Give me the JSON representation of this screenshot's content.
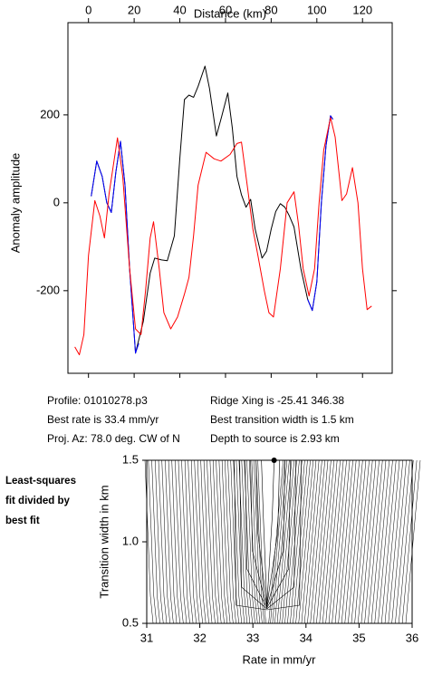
{
  "chart_data": [
    {
      "type": "line",
      "xlabel": "Distance (km)",
      "ylabel": "Anomaly amplitude",
      "xlim": [
        -9,
        133
      ],
      "ylim": [
        -388,
        410
      ],
      "xticks": [
        0,
        20,
        40,
        60,
        80,
        100,
        120
      ],
      "yticks": [
        -200,
        0,
        200
      ],
      "series": [
        {
          "color": "#000000",
          "x": [
            1.2,
            3.6,
            6,
            8,
            10,
            12,
            14,
            16,
            18,
            20.6,
            24,
            27,
            29,
            32,
            34.5,
            37.6,
            40,
            42,
            44,
            46,
            48,
            51,
            53,
            56,
            58.5,
            61,
            63,
            65,
            67,
            69,
            71,
            73,
            76,
            78,
            80,
            82,
            84,
            86,
            88,
            90,
            93,
            96,
            98,
            100,
            102,
            104,
            106,
            107
          ],
          "values": [
            15,
            95,
            60,
            0,
            -22,
            70,
            140,
            40,
            -150,
            -342,
            -270,
            -160,
            -126,
            -130,
            -132,
            -75,
            100,
            235,
            245,
            240,
            265,
            311,
            260,
            152,
            200,
            250,
            170,
            60,
            18,
            -10,
            8,
            -60,
            -126,
            -110,
            -60,
            -20,
            -2,
            -10,
            -30,
            -55,
            -150,
            -220,
            -245,
            -180,
            0,
            130,
            198,
            190
          ]
        },
        {
          "color": "#0000ff",
          "x": [
            1.2,
            3.6,
            6,
            8,
            10,
            12,
            14,
            16,
            18,
            20.6,
            22,
            null,
            96,
            98,
            100,
            102,
            104,
            106,
            107
          ],
          "values": [
            15,
            95,
            60,
            0,
            -22,
            70,
            140,
            40,
            -150,
            -342,
            -320,
            null,
            -220,
            -245,
            -180,
            0,
            130,
            198,
            190
          ]
        },
        {
          "color": "#ff0000",
          "x": [
            -6,
            -4,
            -2,
            0,
            2.8,
            5,
            7,
            9,
            12.7,
            15,
            18,
            20.6,
            23,
            25,
            27,
            28.5,
            31,
            33,
            36,
            39,
            42,
            44,
            46,
            48,
            51.5,
            55,
            58,
            62,
            65,
            67,
            70,
            72,
            74,
            77,
            79,
            81,
            84,
            87,
            90,
            92,
            94,
            96.6,
            99,
            101,
            103,
            106,
            108,
            111,
            113,
            115.6,
            118,
            120,
            122,
            124
          ],
          "values": [
            -328,
            -346,
            -300,
            -120,
            5,
            -30,
            -80,
            20,
            148,
            60,
            -150,
            -287,
            -300,
            -200,
            -80,
            -43,
            -150,
            -250,
            -287,
            -260,
            -208,
            -170,
            -75,
            40,
            115,
            100,
            95,
            110,
            135,
            138,
            20,
            -60,
            -115,
            -200,
            -250,
            -260,
            -150,
            0,
            25,
            -50,
            -150,
            -212,
            -150,
            0,
            120,
            194,
            150,
            5,
            20,
            80,
            0,
            -150,
            -243,
            -235
          ]
        }
      ]
    },
    {
      "type": "contour",
      "xlabel": "Rate in mm/yr",
      "ylabel": "Transition width in km",
      "xlim": [
        31,
        36
      ],
      "ylim": [
        0.5,
        1.5
      ],
      "xticks": [
        31,
        32,
        33,
        34,
        35,
        36
      ],
      "yticks": [
        0.5,
        {
          "value": 1,
          "label": "1.0"
        },
        1.5
      ],
      "best": {
        "x": 33.4,
        "y": 1.5
      }
    }
  ],
  "profile_info": [
    "Profile: 01010278.p3",
    "Best rate is 33.4 mm/yr",
    "Proj. Az: 78.0 deg. CW of N",
    "Ridge Xing is -25.41 346.38",
    "Best transition width is 1.5 km",
    "Depth to source is   2.93 km"
  ],
  "side_label": [
    "Least-squares",
    "fit divided by",
    "best fit"
  ]
}
